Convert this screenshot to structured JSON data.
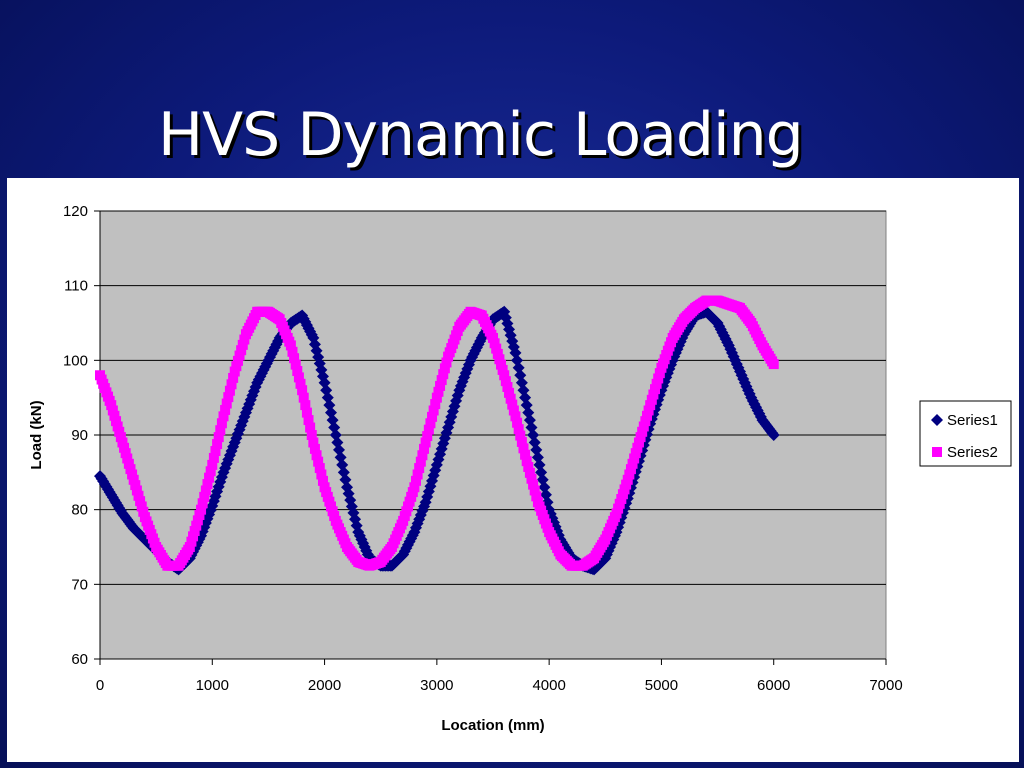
{
  "slide": {
    "title": "HVS Dynamic Loading"
  },
  "chart_data": {
    "type": "scatter",
    "title": "",
    "xlabel": "Location (mm)",
    "ylabel": "Load (kN)",
    "xlim": [
      0,
      7000
    ],
    "ylim": [
      60,
      120
    ],
    "xticks": [
      0,
      1000,
      2000,
      3000,
      4000,
      5000,
      6000,
      7000
    ],
    "yticks": [
      60,
      70,
      80,
      90,
      100,
      110,
      120
    ],
    "grid": "horizontal",
    "legend": "right",
    "plot_background": "#c0c0c0",
    "series": [
      {
        "name": "Series1",
        "color": "#000080",
        "marker": "diamond",
        "x": [
          0,
          100,
          200,
          300,
          400,
          500,
          600,
          700,
          800,
          900,
          1000,
          1100,
          1200,
          1300,
          1400,
          1500,
          1600,
          1700,
          1800,
          1900,
          2000,
          2100,
          2200,
          2300,
          2400,
          2500,
          2600,
          2700,
          2800,
          2900,
          3000,
          3100,
          3200,
          3300,
          3400,
          3500,
          3600,
          3700,
          3800,
          3900,
          4000,
          4100,
          4200,
          4300,
          4400,
          4500,
          4600,
          4700,
          4800,
          4900,
          5000,
          5100,
          5200,
          5300,
          5400,
          5500,
          5600,
          5700,
          5800,
          5900,
          6000
        ],
        "y": [
          84.5,
          82,
          79.5,
          77.5,
          76,
          74.5,
          73,
          72,
          73.5,
          76.5,
          80.5,
          85,
          89,
          93,
          97,
          100,
          103,
          105,
          106,
          103,
          97,
          90,
          83,
          77,
          73.5,
          72.5,
          72.5,
          74,
          77,
          81,
          86,
          91,
          96,
          100,
          103,
          105.5,
          106.5,
          101,
          94,
          87,
          80,
          76,
          73.5,
          72.5,
          72,
          73.5,
          77,
          81.5,
          86.5,
          91.5,
          96,
          100,
          103.5,
          106,
          106.5,
          105,
          102,
          98.5,
          95,
          92,
          90
        ]
      },
      {
        "name": "Series2",
        "color": "#ff00ff",
        "marker": "square",
        "x": [
          0,
          100,
          200,
          300,
          400,
          500,
          600,
          700,
          800,
          900,
          1000,
          1100,
          1200,
          1300,
          1400,
          1500,
          1600,
          1700,
          1800,
          1900,
          2000,
          2100,
          2200,
          2300,
          2400,
          2500,
          2600,
          2700,
          2800,
          2900,
          3000,
          3100,
          3200,
          3300,
          3400,
          3500,
          3600,
          3700,
          3800,
          3900,
          4000,
          4100,
          4200,
          4300,
          4400,
          4500,
          4600,
          4700,
          4800,
          4900,
          5000,
          5100,
          5200,
          5300,
          5400,
          5500,
          5600,
          5700,
          5800,
          5900,
          6000
        ],
        "y": [
          98,
          94,
          89,
          84,
          79,
          75,
          72.5,
          72.5,
          75,
          80,
          86,
          92.5,
          98.5,
          103.5,
          106.5,
          106.5,
          105.5,
          102,
          96,
          89,
          83,
          78.5,
          75,
          73,
          72.5,
          73,
          75,
          78.5,
          83,
          89,
          95,
          100.5,
          104.5,
          106.5,
          106,
          103,
          98,
          92.5,
          86.5,
          81,
          77,
          74,
          72.5,
          72.5,
          73.5,
          76,
          79.5,
          84,
          89,
          94,
          99,
          103,
          105.5,
          107,
          108,
          108,
          107.5,
          107,
          105,
          102,
          99.5
        ]
      }
    ]
  }
}
